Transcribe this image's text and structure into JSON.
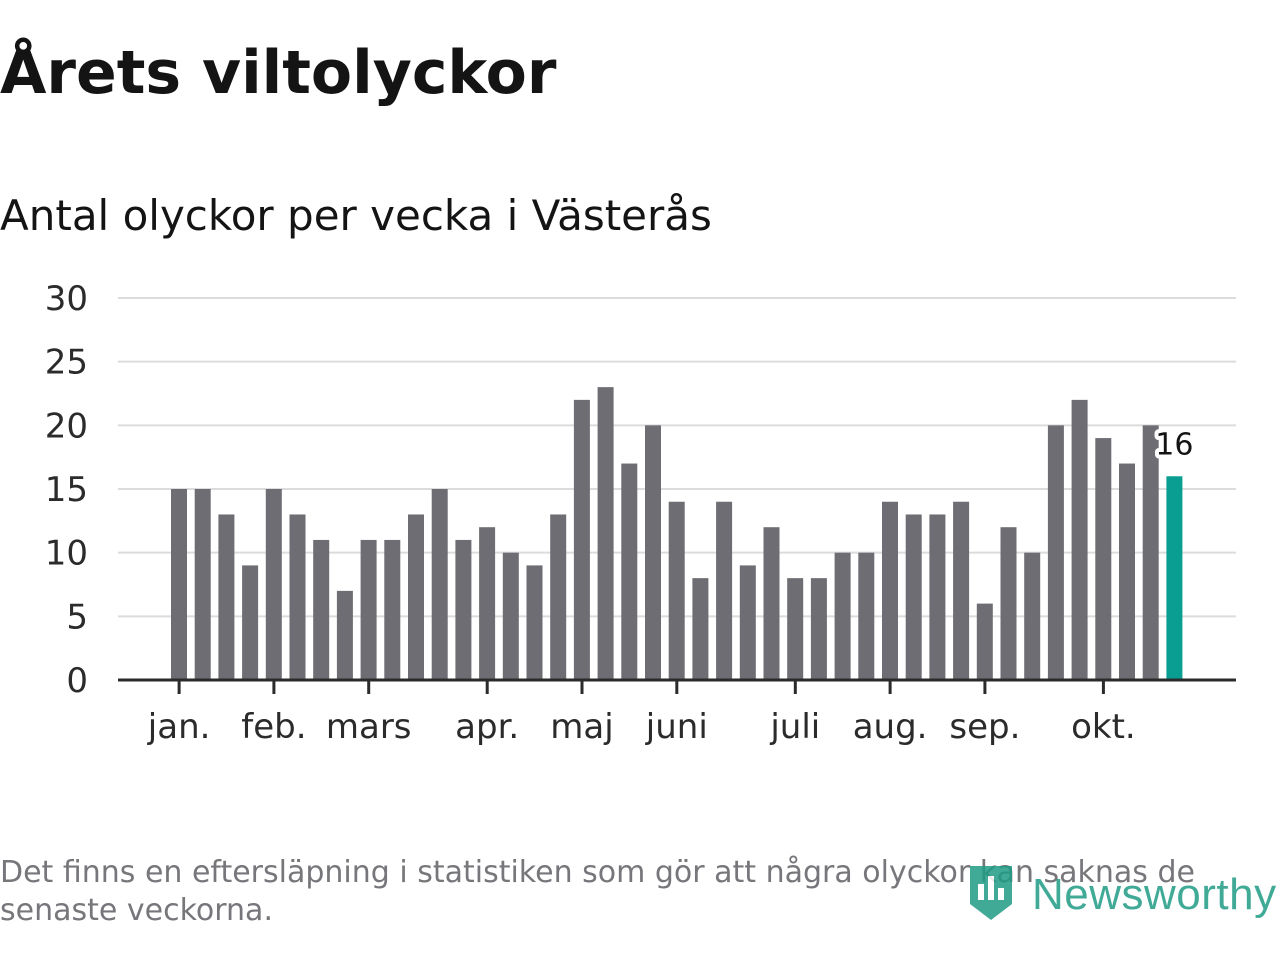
{
  "title": "Årets viltolyckor",
  "subtitle": "Antal olyckor per vecka i Västerås",
  "footnote": "Det finns en eftersläpning i statistiken som gör att några olyckor kan saknas de senaste veckorna.",
  "logo": {
    "text": "Newsworthy",
    "icon": "newsworthy-bar-chart-icon"
  },
  "colors": {
    "bar": "#6e6d73",
    "highlight": "#0a9e93",
    "grid": "#dcdcdc",
    "axis": "#2b2b2b",
    "text": "#2b2b2b",
    "brand": "#1f9c86"
  },
  "chart_data": {
    "type": "bar",
    "title": "Årets viltolyckor",
    "subtitle": "Antal olyckor per vecka i Västerås",
    "xlabel": "",
    "ylabel": "",
    "ylim": [
      0,
      30
    ],
    "yticks": [
      0,
      5,
      10,
      15,
      20,
      25,
      30
    ],
    "grid": true,
    "values": [
      15,
      15,
      13,
      9,
      15,
      13,
      11,
      7,
      11,
      11,
      13,
      15,
      11,
      12,
      10,
      9,
      13,
      22,
      23,
      17,
      20,
      14,
      8,
      14,
      9,
      12,
      8,
      8,
      10,
      10,
      14,
      13,
      13,
      14,
      6,
      12,
      10,
      20,
      22,
      19,
      17,
      20,
      16
    ],
    "highlight_index": 42,
    "highlight_label": "16",
    "month_labels": [
      {
        "label": "jan.",
        "at_week": 0.3
      },
      {
        "label": "feb.",
        "at_week": 4.3
      },
      {
        "label": "mars",
        "at_week": 8.3
      },
      {
        "label": "apr.",
        "at_week": 13.3
      },
      {
        "label": "maj",
        "at_week": 17.3
      },
      {
        "label": "juni",
        "at_week": 21.3
      },
      {
        "label": "juli",
        "at_week": 26.3
      },
      {
        "label": "aug.",
        "at_week": 30.3
      },
      {
        "label": "sep.",
        "at_week": 34.3
      },
      {
        "label": "okt.",
        "at_week": 39.3
      }
    ]
  }
}
